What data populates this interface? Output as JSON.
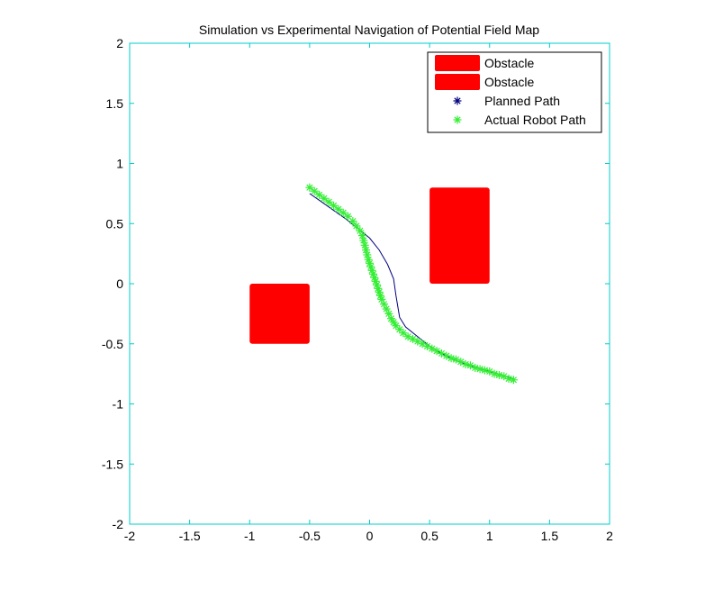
{
  "chart_data": {
    "type": "scatter",
    "title": "Simulation vs Experimental Navigation of Potential Field Map",
    "xlabel": "",
    "ylabel": "",
    "xlim": [
      -2,
      2
    ],
    "ylim": [
      -2,
      2
    ],
    "xticks": [
      -2,
      -1.5,
      -1,
      -0.5,
      0,
      0.5,
      1,
      1.5,
      2
    ],
    "yticks": [
      -2,
      -1.5,
      -1,
      -0.5,
      0,
      0.5,
      1,
      1.5,
      2
    ],
    "xtick_labels": [
      "-2",
      "-1.5",
      "-1",
      "-0.5",
      "0",
      "0.5",
      "1",
      "1.5",
      "2"
    ],
    "ytick_labels": [
      "-2",
      "-1.5",
      "-1",
      "-0.5",
      "0",
      "0.5",
      "1",
      "1.5",
      "2"
    ],
    "grid": false,
    "legend_position": "top-right",
    "legend": [
      {
        "label": "Obstacle",
        "marker": "patch",
        "color": "#ff0000"
      },
      {
        "label": "Obstacle",
        "marker": "patch",
        "color": "#ff0000"
      },
      {
        "label": "Planned Path",
        "marker": "asterisk",
        "color": "#00007f"
      },
      {
        "label": "Actual Robot Path",
        "marker": "asterisk",
        "color": "#33ee33"
      }
    ],
    "obstacles": [
      {
        "name": "Obstacle",
        "x": [
          -1.0,
          -0.5
        ],
        "y": [
          -0.5,
          0.0
        ],
        "color": "#ff0000"
      },
      {
        "name": "Obstacle",
        "x": [
          0.5,
          1.0
        ],
        "y": [
          0.0,
          0.8
        ],
        "color": "#ff0000"
      }
    ],
    "series": [
      {
        "name": "Planned Path",
        "style": "line",
        "color": "#00007f",
        "x": [
          -0.5,
          -0.4,
          -0.3,
          -0.2,
          -0.1,
          0.0,
          0.08,
          0.15,
          0.2,
          0.22,
          0.24,
          0.25,
          0.3,
          0.4,
          0.5,
          0.6,
          0.7,
          0.8,
          0.9,
          1.0,
          1.1,
          1.2
        ],
        "y": [
          0.75,
          0.68,
          0.61,
          0.54,
          0.46,
          0.38,
          0.28,
          0.16,
          0.04,
          -0.1,
          -0.22,
          -0.28,
          -0.36,
          -0.44,
          -0.52,
          -0.58,
          -0.63,
          -0.67,
          -0.7,
          -0.73,
          -0.76,
          -0.79
        ]
      },
      {
        "name": "Actual Robot Path",
        "style": "asterisk",
        "color": "#33ee33",
        "x": [
          -0.5,
          -0.46,
          -0.42,
          -0.38,
          -0.34,
          -0.3,
          -0.26,
          -0.22,
          -0.18,
          -0.14,
          -0.11,
          -0.08,
          -0.06,
          -0.05,
          -0.04,
          -0.03,
          -0.02,
          -0.01,
          0.0,
          0.01,
          0.02,
          0.03,
          0.04,
          0.05,
          0.06,
          0.07,
          0.08,
          0.09,
          0.1,
          0.12,
          0.14,
          0.16,
          0.18,
          0.2,
          0.22,
          0.25,
          0.28,
          0.32,
          0.36,
          0.4,
          0.44,
          0.48,
          0.52,
          0.56,
          0.6,
          0.64,
          0.68,
          0.72,
          0.76,
          0.8,
          0.84,
          0.88,
          0.92,
          0.96,
          1.0,
          1.04,
          1.08,
          1.12,
          1.16,
          1.2
        ],
        "y": [
          0.8,
          0.77,
          0.74,
          0.71,
          0.68,
          0.65,
          0.62,
          0.59,
          0.56,
          0.52,
          0.48,
          0.44,
          0.4,
          0.36,
          0.32,
          0.28,
          0.24,
          0.2,
          0.17,
          0.14,
          0.11,
          0.08,
          0.05,
          0.02,
          -0.01,
          -0.04,
          -0.07,
          -0.1,
          -0.13,
          -0.17,
          -0.21,
          -0.25,
          -0.29,
          -0.32,
          -0.35,
          -0.38,
          -0.41,
          -0.44,
          -0.46,
          -0.48,
          -0.5,
          -0.52,
          -0.54,
          -0.56,
          -0.58,
          -0.6,
          -0.62,
          -0.63,
          -0.65,
          -0.67,
          -0.68,
          -0.7,
          -0.71,
          -0.72,
          -0.73,
          -0.75,
          -0.76,
          -0.77,
          -0.79,
          -0.8
        ]
      }
    ]
  },
  "colors": {
    "axis_box": "#00cccc",
    "axis_text": "#000000",
    "background": "#ffffff"
  }
}
